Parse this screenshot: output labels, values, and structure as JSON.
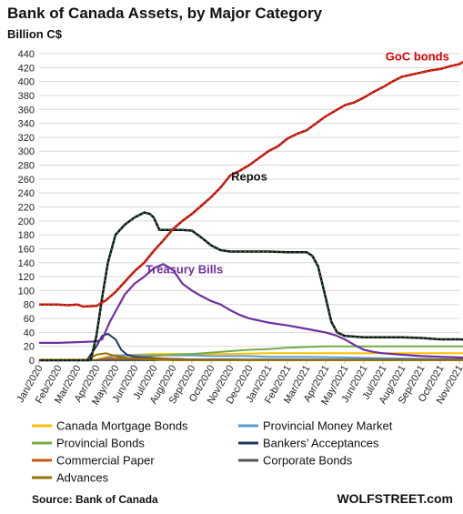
{
  "chart_data": {
    "type": "line",
    "title": "Bank of Canada Assets, by Major Category",
    "ylabel": "Billion C$",
    "ylim": [
      0,
      440
    ],
    "yticks": [
      0,
      20,
      40,
      60,
      80,
      100,
      120,
      140,
      160,
      180,
      200,
      220,
      240,
      260,
      280,
      300,
      320,
      340,
      360,
      380,
      400,
      420,
      440
    ],
    "grid": "horizontal",
    "x_months": [
      "Jan/2020",
      "Feb/2020",
      "Mar/2020",
      "Apr/2020",
      "May/2020",
      "Jun/2020",
      "Jul/2020",
      "Aug/2020",
      "Sep/2020",
      "Oct/2020",
      "Nov/2020",
      "Dec/2020",
      "Jan/2021",
      "Feb/2021",
      "Mar/2021",
      "Apr/2021",
      "May/2021",
      "Jun/2021",
      "Jul/2021",
      "Aug/2021",
      "Sep/2021",
      "Oct/2021",
      "Nov/2021"
    ],
    "x_index_note_free": true,
    "legend_position": "bottom",
    "series": [
      {
        "name": "GoC bonds",
        "color": "#e00000",
        "width": 2.5,
        "dashed_overlay": true,
        "points": [
          [
            0,
            80
          ],
          [
            0.5,
            80
          ],
          [
            1,
            80
          ],
          [
            1.5,
            79
          ],
          [
            2,
            80
          ],
          [
            2.3,
            77
          ],
          [
            3,
            78
          ],
          [
            3.5,
            86
          ],
          [
            4,
            98
          ],
          [
            4.5,
            113
          ],
          [
            5,
            128
          ],
          [
            5.5,
            140
          ],
          [
            6,
            157
          ],
          [
            6.5,
            172
          ],
          [
            7,
            188
          ],
          [
            7.5,
            200
          ],
          [
            8,
            210
          ],
          [
            8.5,
            222
          ],
          [
            9,
            234
          ],
          [
            9.5,
            248
          ],
          [
            10,
            265
          ],
          [
            10.5,
            272
          ],
          [
            11,
            280
          ],
          [
            11.5,
            290
          ],
          [
            12,
            300
          ],
          [
            12.5,
            307
          ],
          [
            13,
            318
          ],
          [
            13.5,
            325
          ],
          [
            14,
            330
          ],
          [
            14.5,
            340
          ],
          [
            15,
            350
          ],
          [
            15.5,
            358
          ],
          [
            16,
            366
          ],
          [
            16.5,
            370
          ],
          [
            17,
            377
          ],
          [
            17.5,
            385
          ],
          [
            18,
            392
          ],
          [
            18.5,
            400
          ],
          [
            19,
            407
          ],
          [
            19.5,
            410
          ],
          [
            20,
            413
          ],
          [
            20.5,
            416
          ],
          [
            21,
            418
          ],
          [
            21.5,
            422
          ],
          [
            22,
            425
          ],
          [
            22.3,
            430
          ],
          [
            22.6,
            425
          ],
          [
            23,
            426
          ]
        ]
      },
      {
        "name": "Repos",
        "color": "#111111",
        "width": 2.5,
        "dashed_overlay": true,
        "points": [
          [
            0,
            0
          ],
          [
            2,
            0
          ],
          [
            2.7,
            0
          ],
          [
            3,
            35
          ],
          [
            3.3,
            90
          ],
          [
            3.6,
            140
          ],
          [
            4,
            180
          ],
          [
            4.5,
            195
          ],
          [
            5,
            205
          ],
          [
            5.5,
            212
          ],
          [
            5.8,
            210
          ],
          [
            6,
            205
          ],
          [
            6.3,
            187
          ],
          [
            7,
            187
          ],
          [
            7.5,
            187
          ],
          [
            8,
            186
          ],
          [
            8.5,
            176
          ],
          [
            9,
            165
          ],
          [
            9.5,
            158
          ],
          [
            10,
            156
          ],
          [
            11,
            156
          ],
          [
            12,
            156
          ],
          [
            13,
            155
          ],
          [
            14,
            155
          ],
          [
            14.3,
            150
          ],
          [
            14.6,
            135
          ],
          [
            15,
            90
          ],
          [
            15.3,
            55
          ],
          [
            15.6,
            40
          ],
          [
            16,
            35
          ],
          [
            17,
            33
          ],
          [
            18,
            33
          ],
          [
            19,
            33
          ],
          [
            20,
            32
          ],
          [
            21,
            30
          ],
          [
            22,
            30
          ],
          [
            22.5,
            29
          ],
          [
            23,
            25
          ]
        ]
      },
      {
        "name": "Treasury Bills",
        "color": "#7030a0",
        "width": 2.2,
        "points": [
          [
            0,
            25
          ],
          [
            1,
            25
          ],
          [
            2,
            26
          ],
          [
            3,
            27
          ],
          [
            3.3,
            30
          ],
          [
            3.7,
            55
          ],
          [
            4,
            70
          ],
          [
            4.5,
            95
          ],
          [
            5,
            110
          ],
          [
            5.5,
            120
          ],
          [
            6,
            132
          ],
          [
            6.5,
            138
          ],
          [
            7,
            130
          ],
          [
            7.5,
            110
          ],
          [
            8,
            100
          ],
          [
            8.5,
            92
          ],
          [
            9,
            85
          ],
          [
            9.5,
            80
          ],
          [
            10,
            72
          ],
          [
            10.5,
            65
          ],
          [
            11,
            60
          ],
          [
            11.5,
            57
          ],
          [
            12,
            54
          ],
          [
            13,
            50
          ],
          [
            14,
            45
          ],
          [
            15,
            40
          ],
          [
            15.5,
            36
          ],
          [
            16,
            30
          ],
          [
            16.5,
            22
          ],
          [
            17,
            15
          ],
          [
            17.5,
            12
          ],
          [
            18,
            10
          ],
          [
            19,
            8
          ],
          [
            20,
            6
          ],
          [
            21,
            5
          ],
          [
            22,
            4
          ],
          [
            23,
            3
          ]
        ]
      },
      {
        "name": "Canada Mortgage Bonds",
        "color": "#ffc000",
        "width": 2,
        "points": [
          [
            0,
            1
          ],
          [
            3,
            1
          ],
          [
            3.5,
            5
          ],
          [
            4,
            7
          ],
          [
            5,
            8
          ],
          [
            6,
            9
          ],
          [
            7,
            9
          ],
          [
            8,
            9
          ],
          [
            10,
            9
          ],
          [
            12,
            10
          ],
          [
            14,
            10
          ],
          [
            16,
            10
          ],
          [
            18,
            10
          ],
          [
            20,
            10
          ],
          [
            23,
            10
          ]
        ]
      },
      {
        "name": "Provincial Money Market",
        "color": "#5b9bd5",
        "width": 2,
        "points": [
          [
            0,
            0
          ],
          [
            3,
            0
          ],
          [
            3.5,
            3
          ],
          [
            4,
            7
          ],
          [
            5,
            7
          ],
          [
            6,
            7
          ],
          [
            7,
            7
          ],
          [
            8,
            7
          ],
          [
            9,
            6
          ],
          [
            10,
            6
          ],
          [
            11,
            6
          ],
          [
            12,
            5
          ],
          [
            14,
            5
          ],
          [
            16,
            4
          ],
          [
            18,
            3
          ],
          [
            20,
            2
          ],
          [
            23,
            1
          ]
        ]
      },
      {
        "name": "Provincial Bonds",
        "color": "#70ad47",
        "width": 2,
        "points": [
          [
            0,
            0
          ],
          [
            3,
            0
          ],
          [
            4,
            0
          ],
          [
            5,
            3
          ],
          [
            6,
            6
          ],
          [
            7,
            8
          ],
          [
            8,
            9
          ],
          [
            9,
            11
          ],
          [
            10,
            13
          ],
          [
            11,
            15
          ],
          [
            12,
            16
          ],
          [
            13,
            18
          ],
          [
            14,
            19
          ],
          [
            15,
            20
          ],
          [
            16,
            20
          ],
          [
            18,
            20
          ],
          [
            20,
            20
          ],
          [
            23,
            20
          ]
        ]
      },
      {
        "name": "Bankers’ Acceptances",
        "color": "#1f3864",
        "width": 2,
        "points": [
          [
            0,
            0
          ],
          [
            2.5,
            0
          ],
          [
            3,
            20
          ],
          [
            3.3,
            35
          ],
          [
            3.6,
            38
          ],
          [
            4,
            30
          ],
          [
            4.3,
            15
          ],
          [
            4.6,
            8
          ],
          [
            5,
            5
          ],
          [
            6,
            3
          ],
          [
            7,
            2
          ],
          [
            8,
            1
          ],
          [
            10,
            1
          ],
          [
            12,
            0
          ],
          [
            23,
            0
          ]
        ]
      },
      {
        "name": "Commercial Paper",
        "color": "#c55a11",
        "width": 2,
        "points": [
          [
            0,
            0
          ],
          [
            3,
            0
          ],
          [
            3.5,
            2
          ],
          [
            4,
            3
          ],
          [
            5,
            3
          ],
          [
            6,
            2
          ],
          [
            7,
            2
          ],
          [
            8,
            1
          ],
          [
            10,
            1
          ],
          [
            12,
            0
          ],
          [
            23,
            0
          ]
        ]
      },
      {
        "name": "Corporate Bonds",
        "color": "#555555",
        "width": 2,
        "points": [
          [
            0,
            0
          ],
          [
            5,
            0
          ],
          [
            6,
            0
          ],
          [
            7,
            1
          ],
          [
            8,
            1
          ],
          [
            10,
            1
          ],
          [
            12,
            1
          ],
          [
            14,
            1
          ],
          [
            16,
            1
          ],
          [
            18,
            1
          ],
          [
            20,
            1
          ],
          [
            23,
            1
          ]
        ]
      },
      {
        "name": "Advances",
        "color": "#997300",
        "width": 2,
        "points": [
          [
            0,
            0
          ],
          [
            2.5,
            0
          ],
          [
            3,
            8
          ],
          [
            3.5,
            10
          ],
          [
            4,
            6
          ],
          [
            4.5,
            4
          ],
          [
            5,
            2
          ],
          [
            6,
            1
          ],
          [
            7,
            0
          ],
          [
            23,
            0
          ]
        ]
      }
    ],
    "annotations": [
      {
        "text": "GoC bonds",
        "color": "#e00000",
        "at": [
          19.8,
          430
        ]
      },
      {
        "text": "Repos",
        "color": "#111111",
        "at": [
          11.0,
          258
        ]
      },
      {
        "text": "Treasury Bills",
        "color": "#7030a0",
        "at": [
          7.6,
          125
        ]
      }
    ],
    "source": "Source: Bank of Canada",
    "brand": "WOLFSTREET.com"
  }
}
